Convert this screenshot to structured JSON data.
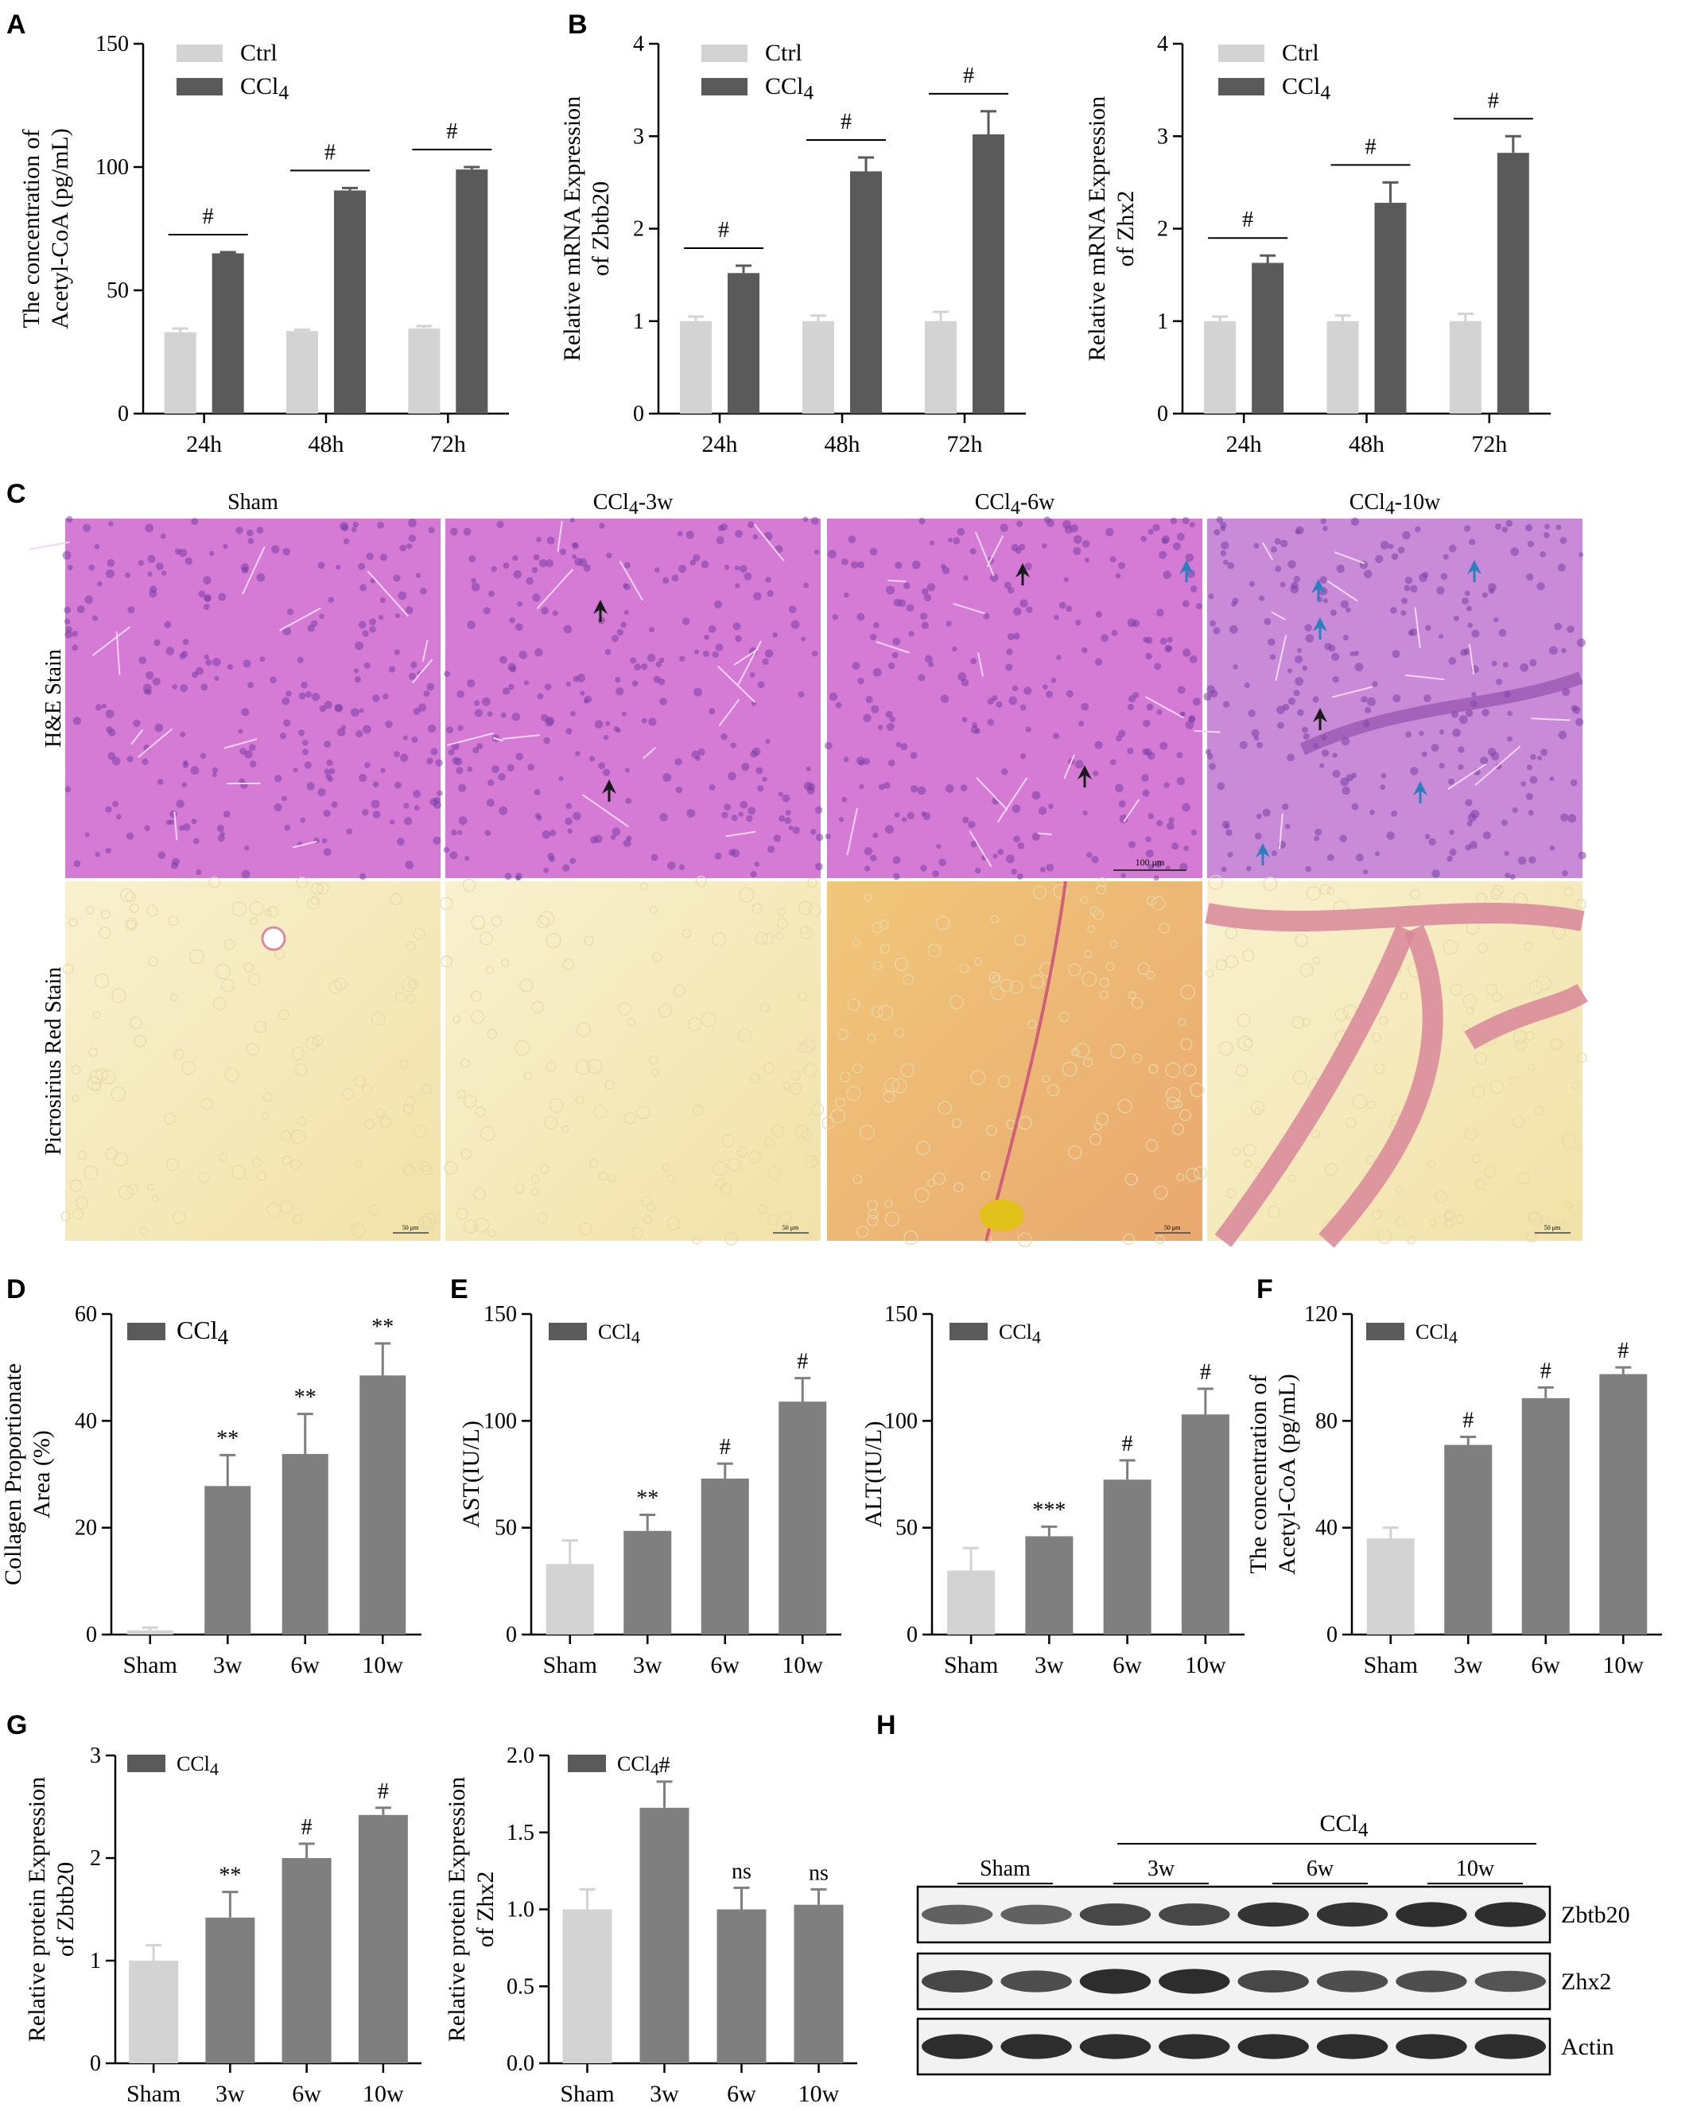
{
  "colors": {
    "ctrl": "#d3d3d3",
    "ccl4": "#5a5a5a",
    "ccl4_light": "#7f7f7f",
    "sham": "#d3d3d3",
    "he_bg": "#d57ad5",
    "psr_bg": "#f7f0c6"
  },
  "panels": {
    "A": {
      "letter": "A",
      "chart_data": {
        "type": "bar",
        "ylabel": [
          "The concentration of",
          "Acetyl-CoA (pg/mL)"
        ],
        "categories": [
          "24h",
          "48h",
          "72h"
        ],
        "ylim": [
          0,
          150
        ],
        "yticks": [
          "0",
          "50",
          "100",
          "150"
        ],
        "legend": [
          "Ctrl",
          "CCl4"
        ],
        "series": [
          {
            "name": "Ctrl",
            "values": [
              33,
              33.5,
              34.5
            ],
            "errors": [
              1.5,
              0.5,
              1.0
            ]
          },
          {
            "name": "CCl4",
            "values": [
              65,
              90.5,
              99
            ],
            "errors": [
              0.5,
              1.0,
              1.0
            ]
          }
        ],
        "annotations": [
          "#",
          "#",
          "#"
        ]
      }
    },
    "B1": {
      "letter": "B",
      "chart_data": {
        "type": "bar",
        "ylabel": [
          "Relative mRNA Expression",
          "of Zbtb20"
        ],
        "categories": [
          "24h",
          "48h",
          "72h"
        ],
        "ylim": [
          0,
          4
        ],
        "yticks": [
          "0",
          "1",
          "2",
          "3",
          "4"
        ],
        "legend": [
          "Ctrl",
          "CCl4"
        ],
        "series": [
          {
            "name": "Ctrl",
            "values": [
              1.0,
              1.0,
              1.0
            ],
            "errors": [
              0.05,
              0.06,
              0.1
            ]
          },
          {
            "name": "CCl4",
            "values": [
              1.52,
              2.62,
              3.02
            ],
            "errors": [
              0.08,
              0.15,
              0.25
            ]
          }
        ],
        "annotations": [
          "#",
          "#",
          "#"
        ]
      }
    },
    "B2": {
      "chart_data": {
        "type": "bar",
        "ylabel": [
          "Relative mRNA Expression",
          "of Zhx2"
        ],
        "categories": [
          "24h",
          "48h",
          "72h"
        ],
        "ylim": [
          0,
          4
        ],
        "yticks": [
          "0",
          "1",
          "2",
          "3",
          "4"
        ],
        "legend": [
          "Ctrl",
          "CCl4"
        ],
        "series": [
          {
            "name": "Ctrl",
            "values": [
              1.0,
              1.0,
              1.0
            ],
            "errors": [
              0.05,
              0.06,
              0.08
            ]
          },
          {
            "name": "CCl4",
            "values": [
              1.63,
              2.28,
              2.82
            ],
            "errors": [
              0.08,
              0.22,
              0.18
            ]
          }
        ],
        "annotations": [
          "#",
          "#",
          "#"
        ]
      }
    },
    "C": {
      "letter": "C",
      "columns": [
        "Sham",
        "CCl4-3w",
        "CCl4-6w",
        "CCl4-10w"
      ],
      "rows": [
        "H&E Stain",
        "Picrosirius Red Stain"
      ],
      "scalebar_he": "100 μm",
      "scalebar_psr": "50 μm"
    },
    "D": {
      "letter": "D",
      "chart_data": {
        "type": "bar",
        "ylabel": [
          "Collagen Proportionate",
          "Area (%)"
        ],
        "categories": [
          "Sham",
          "3w",
          "6w",
          "10w"
        ],
        "ylim": [
          0,
          60
        ],
        "yticks": [
          "0",
          "20",
          "40",
          "60"
        ],
        "legend": [
          "CCl4"
        ],
        "series": [
          {
            "name": "CCl4",
            "values": [
              0.8,
              27.8,
              33.8,
              48.5
            ],
            "errors": [
              0.5,
              5.8,
              7.5,
              6.0
            ]
          }
        ],
        "annotations": [
          "",
          "**",
          "**",
          "**"
        ]
      }
    },
    "E1": {
      "letter": "E",
      "chart_data": {
        "type": "bar",
        "ylabel": [
          "AST(IU/L)"
        ],
        "categories": [
          "Sham",
          "3w",
          "6w",
          "10w"
        ],
        "ylim": [
          0,
          150
        ],
        "yticks": [
          "0",
          "50",
          "100",
          "150"
        ],
        "legend": [
          "CCl4"
        ],
        "series": [
          {
            "name": "CCl4",
            "values": [
              33,
              48.5,
              73,
              109
            ],
            "errors": [
              11,
              7.5,
              7,
              11
            ]
          }
        ],
        "annotations": [
          "",
          "**",
          "#",
          "#"
        ]
      }
    },
    "E2": {
      "chart_data": {
        "type": "bar",
        "ylabel": [
          "ALT(IU/L)"
        ],
        "categories": [
          "Sham",
          "3w",
          "6w",
          "10w"
        ],
        "ylim": [
          0,
          150
        ],
        "yticks": [
          "0",
          "50",
          "100",
          "150"
        ],
        "legend": [
          "CCl4"
        ],
        "series": [
          {
            "name": "CCl4",
            "values": [
              30,
              46,
              72.5,
              103
            ],
            "errors": [
              10.5,
              4.5,
              9,
              12
            ]
          }
        ],
        "annotations": [
          "",
          "***",
          "#",
          "#"
        ]
      }
    },
    "F": {
      "letter": "F",
      "chart_data": {
        "type": "bar",
        "ylabel": [
          "The concentration of",
          "Acetyl-CoA (pg/mL)"
        ],
        "categories": [
          "Sham",
          "3w",
          "6w",
          "10w"
        ],
        "ylim": [
          0,
          120
        ],
        "yticks": [
          "0",
          "40",
          "80",
          "120"
        ],
        "legend": [
          "CCl4"
        ],
        "series": [
          {
            "name": "CCl4",
            "values": [
              36,
              71,
              88.5,
              97.5
            ],
            "errors": [
              4,
              3,
              4,
              2.5
            ]
          }
        ],
        "annotations": [
          "",
          "#",
          "#",
          "#"
        ]
      }
    },
    "G1": {
      "letter": "G",
      "chart_data": {
        "type": "bar",
        "ylabel": [
          "Relative protein Expression",
          "of Zbtb20"
        ],
        "categories": [
          "Sham",
          "3w",
          "6w",
          "10w"
        ],
        "ylim": [
          0,
          3
        ],
        "yticks": [
          "0",
          "1",
          "2",
          "3"
        ],
        "legend": [
          "CCl4"
        ],
        "series": [
          {
            "name": "CCl4",
            "values": [
              1.0,
              1.42,
              2.0,
              2.42
            ],
            "errors": [
              0.15,
              0.25,
              0.14,
              0.07
            ]
          }
        ],
        "annotations": [
          "",
          "**",
          "#",
          "#"
        ]
      }
    },
    "G2": {
      "chart_data": {
        "type": "bar",
        "ylabel": [
          "Relative protein Expression",
          "of Zhx2"
        ],
        "categories": [
          "Sham",
          "3w",
          "6w",
          "10w"
        ],
        "ylim": [
          0,
          2.0
        ],
        "yticks": [
          "0.0",
          "0.5",
          "1.0",
          "1.5",
          "2.0"
        ],
        "legend": [
          "CCl4"
        ],
        "series": [
          {
            "name": "CCl4",
            "values": [
              1.0,
              1.66,
              1.0,
              1.03
            ],
            "errors": [
              0.13,
              0.17,
              0.14,
              0.1
            ]
          }
        ],
        "annotations": [
          "",
          "#",
          "ns",
          "ns"
        ]
      }
    },
    "H": {
      "letter": "H",
      "treatment": "CCl4",
      "groups": [
        "Sham",
        "3w",
        "6w",
        "10w"
      ],
      "bands": [
        {
          "label": "Zbtb20",
          "intensity": [
            0.55,
            0.55,
            0.75,
            0.75,
            0.9,
            0.9,
            0.95,
            0.95
          ]
        },
        {
          "label": "Zhx2",
          "intensity": [
            0.75,
            0.7,
            0.95,
            0.95,
            0.75,
            0.7,
            0.7,
            0.65
          ]
        },
        {
          "label": "Actin",
          "intensity": [
            0.95,
            0.95,
            0.95,
            0.95,
            0.95,
            0.95,
            0.95,
            0.95
          ]
        }
      ]
    }
  }
}
